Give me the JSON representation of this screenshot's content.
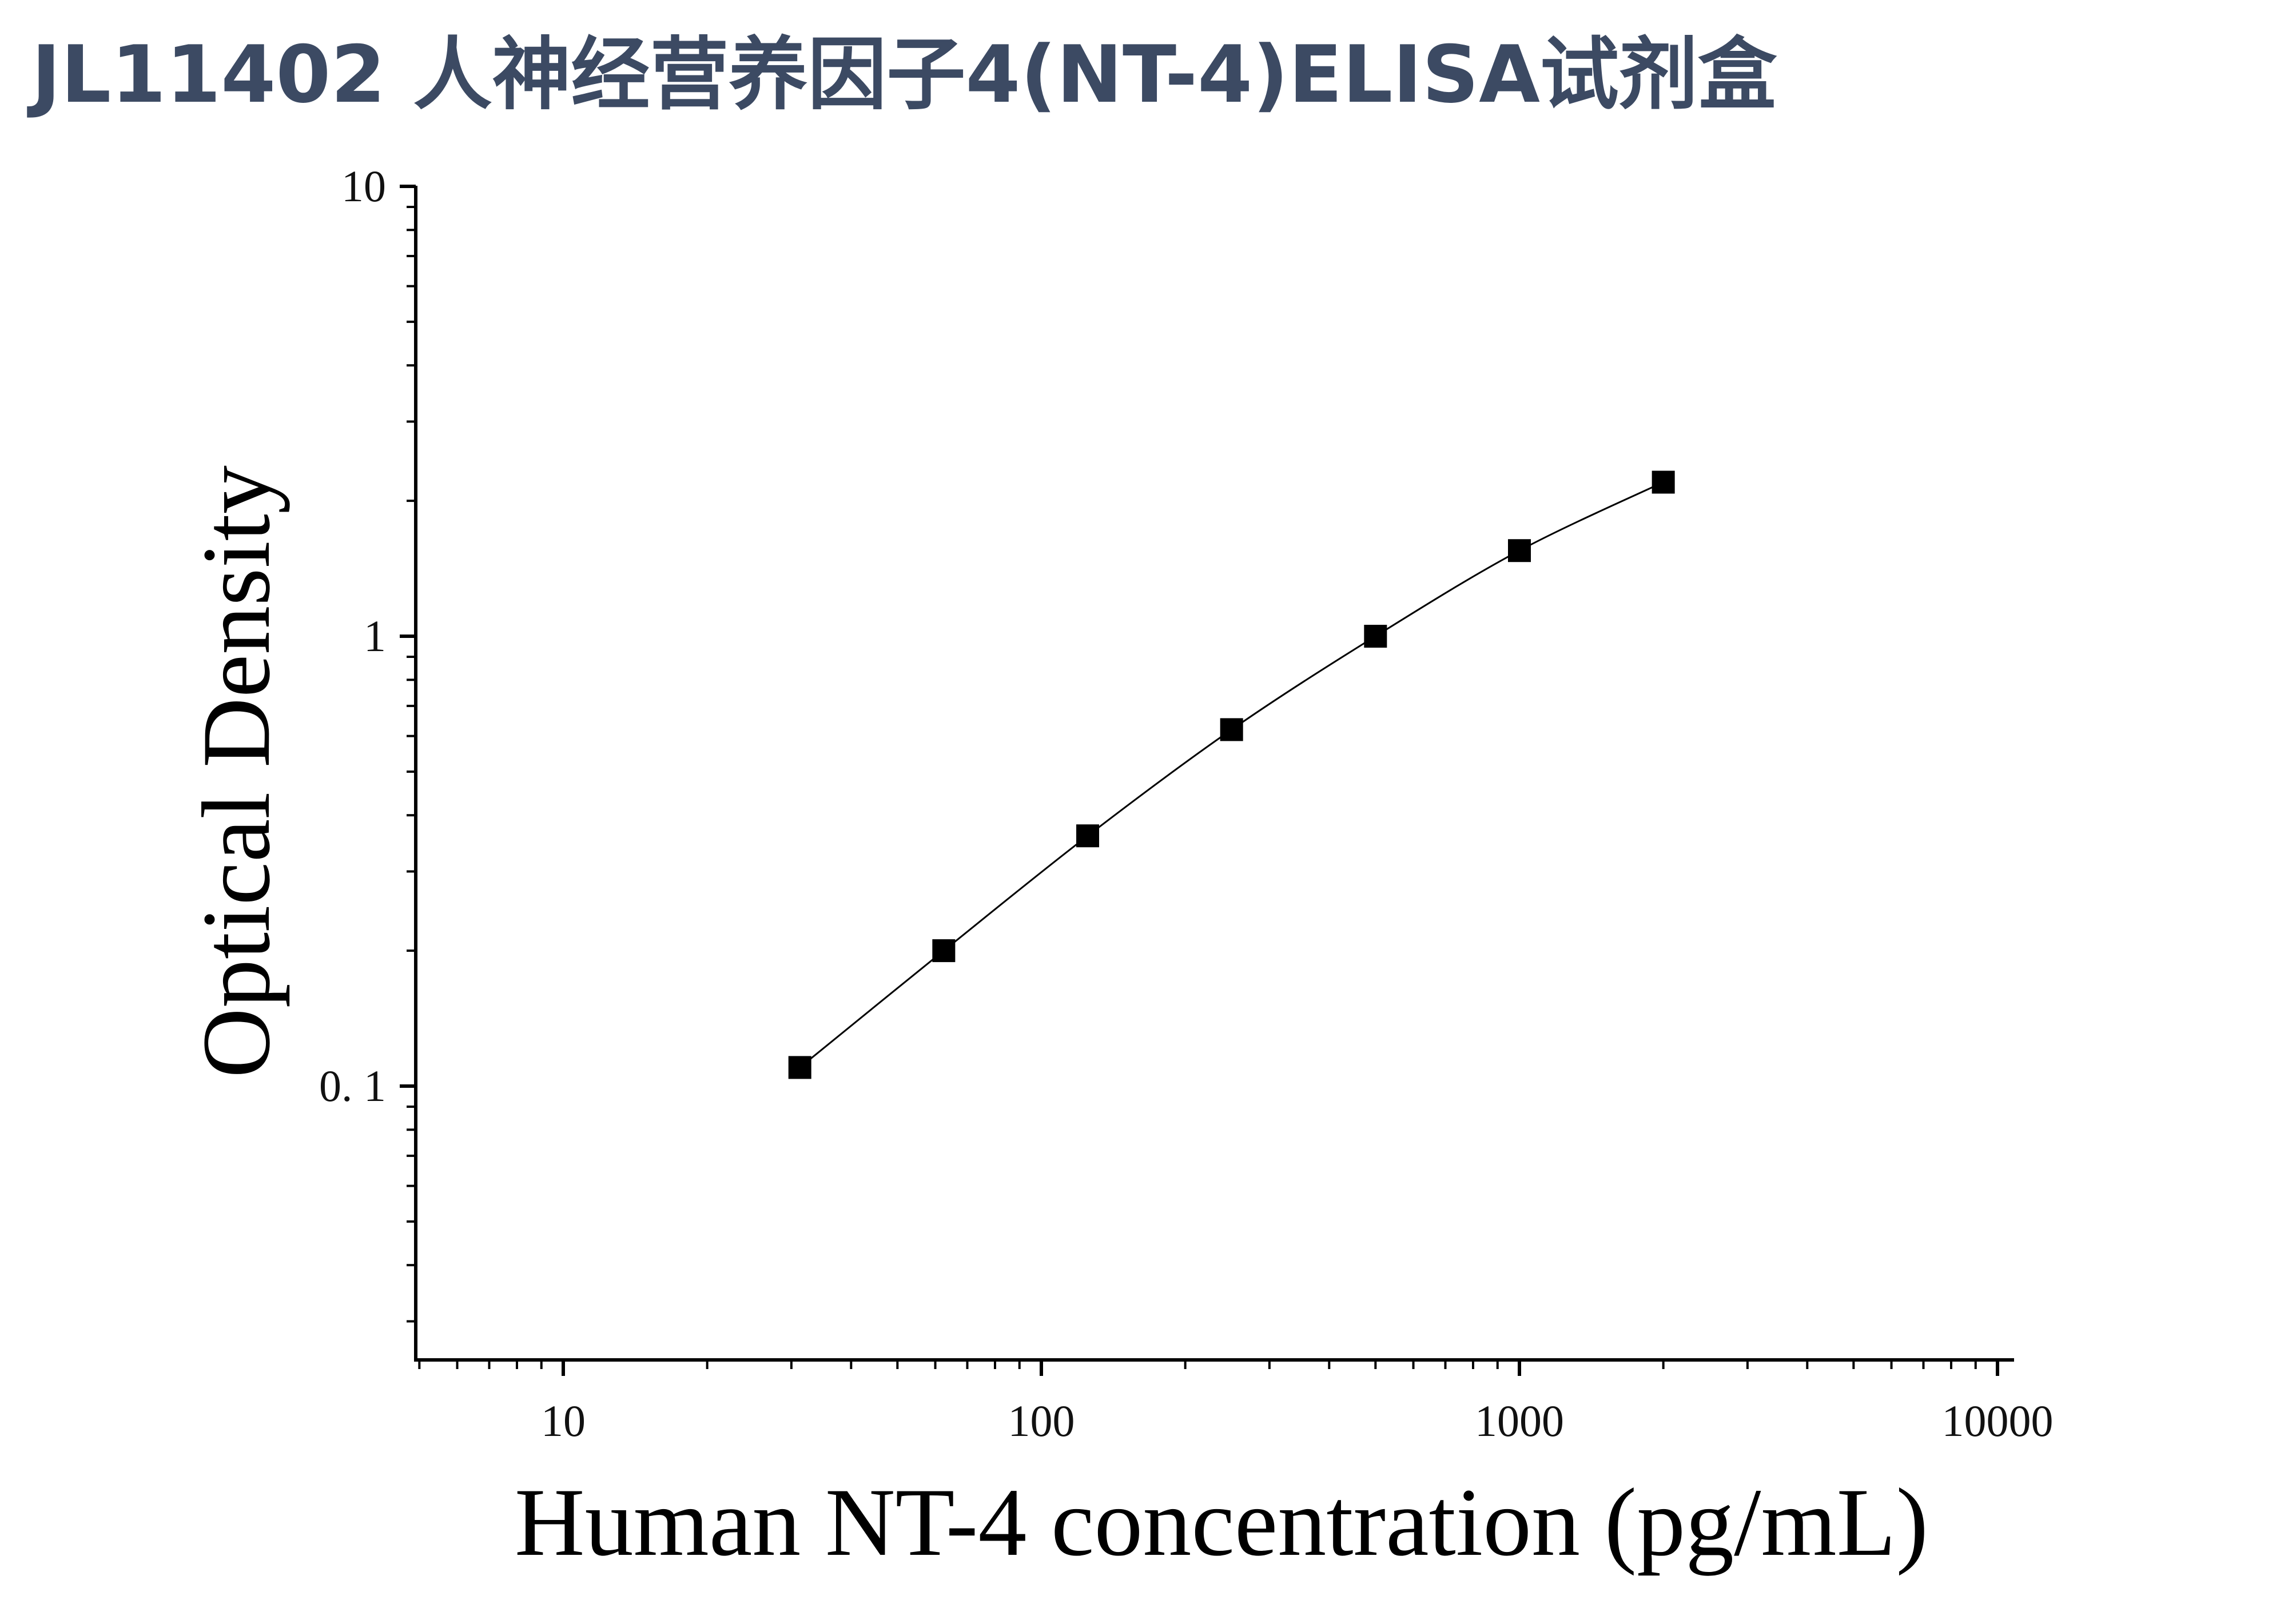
{
  "title": "JL11402 人神经营养因子4(NT-4)ELISA试剂盒",
  "colors": {
    "title": "#3c4a63",
    "axis": "#000000",
    "marker": "#000000",
    "curve": "#000000",
    "background": "#ffffff"
  },
  "chart_data": {
    "type": "scatter",
    "title": "",
    "xlabel": "Human NT-4 concentration (pg/mL)",
    "ylabel": "Optical Density",
    "xscale": "log",
    "yscale": "log",
    "xlim": [
      5,
      10000
    ],
    "ylim": [
      0.03,
      10
    ],
    "x_ticks": [
      {
        "value": 10,
        "label": "10"
      },
      {
        "value": 100,
        "label": "100"
      },
      {
        "value": 1000,
        "label": "1000"
      },
      {
        "value": 10000,
        "label": "10000"
      }
    ],
    "y_ticks": [
      {
        "value": 0.1,
        "label": "0. 1"
      },
      {
        "value": 1,
        "label": "1"
      },
      {
        "value": 10,
        "label": "10"
      }
    ],
    "grid": false,
    "legend": "none",
    "marker": "square",
    "fit_curve": true,
    "series": [
      {
        "x": [
          31.25,
          62.5,
          125,
          250,
          500,
          1000,
          2000
        ],
        "y": [
          0.11,
          0.2,
          0.36,
          0.62,
          1.0,
          1.55,
          2.2
        ]
      }
    ]
  }
}
